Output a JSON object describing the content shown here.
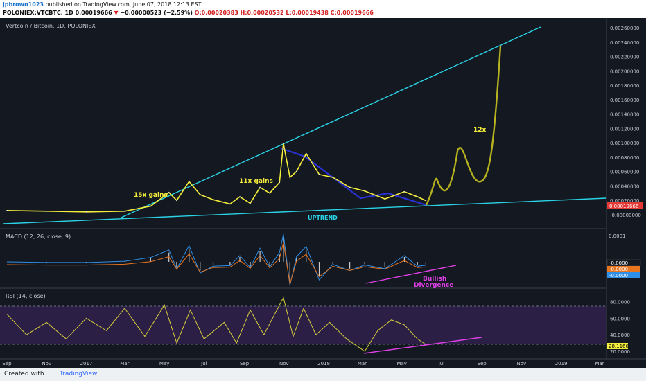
{
  "header": {
    "author": "jpbrown1023",
    "published": " published on TradingView.com, June 07, 2018 12:13 EST",
    "symbol_line_prefix": "POLONIEX:VTCBTC, 1D",
    "price": "0.00019666",
    "change_arrow": "▼",
    "change": "−0.00000523 (−2.59%)",
    "ohlc": "O:0.00020383 H:0.00020532 L:0.00019438 C:0.00019666"
  },
  "chart_data": [
    {
      "type": "line",
      "title": "Vertcoin / Bitcoin, 1D, POLONIEX",
      "ylim": [
        -0.0001,
        0.0027
      ],
      "y_ticks": [
        "0.00260000",
        "0.00240000",
        "0.00220000",
        "0.00200000",
        "0.00180000",
        "0.00160000",
        "0.00140000",
        "0.00120000",
        "0.00100000",
        "0.00080000",
        "0.00060000",
        "0.00040000",
        "0.00020000",
        "-0.00000000"
      ],
      "last_price_label": "0.00019666",
      "series": [
        {
          "values": [
            [
              "2016-09-01",
              6e-05
            ],
            [
              "2016-11-01",
              5e-05
            ],
            [
              "2017-01-01",
              4e-05
            ],
            [
              "2017-03-01",
              5e-05
            ],
            [
              "2017-04-10",
              0.00012
            ],
            [
              "2017-05-08",
              0.00031
            ],
            [
              "2017-05-20",
              0.0002
            ],
            [
              "2017-06-08",
              0.00046
            ],
            [
              "2017-06-25",
              0.00028
            ],
            [
              "2017-07-15",
              0.00021
            ],
            [
              "2017-08-10",
              0.00015
            ],
            [
              "2017-08-25",
              0.00025
            ],
            [
              "2017-09-10",
              0.00016
            ],
            [
              "2017-09-25",
              0.00038
            ],
            [
              "2017-10-10",
              0.0003
            ],
            [
              "2017-10-25",
              0.00045
            ],
            [
              "2017-10-31",
              0.00099
            ],
            [
              "2017-11-10",
              0.00052
            ],
            [
              "2017-11-20",
              0.0006
            ],
            [
              "2017-12-05",
              0.00085
            ],
            [
              "2017-12-25",
              0.00056
            ],
            [
              "2018-01-15",
              0.00052
            ],
            [
              "2018-02-10",
              0.00038
            ],
            [
              "2018-03-05",
              0.00033
            ],
            [
              "2018-04-05",
              0.00022
            ],
            [
              "2018-05-05",
              0.00032
            ],
            [
              "2018-05-25",
              0.00025
            ],
            [
              "2018-06-07",
              0.00019666
            ]
          ]
        }
      ],
      "annotations": [
        "15x gains",
        "11x gains",
        "12x",
        "UPTREND"
      ]
    },
    {
      "type": "line",
      "title": "MACD (12, 26, close, 9)",
      "y_ticks": [
        "0.0001"
      ],
      "value_labels": [
        "-0.0000",
        "-0.0000",
        "-0.0000"
      ],
      "annotations": [
        "Bullish",
        "Divergence"
      ]
    },
    {
      "type": "line",
      "title": "RSI (14, close)",
      "ylim": [
        15,
        88
      ],
      "y_ticks": [
        "80.0000",
        "60.0000",
        "40.0000",
        "20.0000"
      ],
      "last_value_label": "28.1166",
      "series": [
        {
          "values": [
            [
              "2016-09-01",
              65
            ],
            [
              "2016-10-01",
              40
            ],
            [
              "2016-11-01",
              55
            ],
            [
              "2016-12-01",
              35
            ],
            [
              "2017-01-01",
              60
            ],
            [
              "2017-02-01",
              45
            ],
            [
              "2017-03-01",
              72
            ],
            [
              "2017-04-01",
              38
            ],
            [
              "2017-05-01",
              76
            ],
            [
              "2017-05-20",
              30
            ],
            [
              "2017-06-10",
              70
            ],
            [
              "2017-07-01",
              35
            ],
            [
              "2017-08-01",
              55
            ],
            [
              "2017-08-20",
              30
            ],
            [
              "2017-09-10",
              70
            ],
            [
              "2017-10-01",
              40
            ],
            [
              "2017-10-31",
              85
            ],
            [
              "2017-11-15",
              38
            ],
            [
              "2017-12-01",
              72
            ],
            [
              "2017-12-20",
              40
            ],
            [
              "2018-01-10",
              55
            ],
            [
              "2018-02-05",
              35
            ],
            [
              "2018-03-05",
              20
            ],
            [
              "2018-03-25",
              45
            ],
            [
              "2018-04-15",
              58
            ],
            [
              "2018-05-05",
              52
            ],
            [
              "2018-05-25",
              35
            ],
            [
              "2018-06-07",
              28.1166
            ]
          ]
        }
      ]
    }
  ],
  "x_axis": {
    "ticks": [
      {
        "label": "Sep",
        "date": "2016-09-01"
      },
      {
        "label": "Nov",
        "date": "2016-11-01"
      },
      {
        "label": "2017",
        "date": "2017-01-01"
      },
      {
        "label": "Mar",
        "date": "2017-03-01"
      },
      {
        "label": "May",
        "date": "2017-05-01"
      },
      {
        "label": "Jul",
        "date": "2017-07-01"
      },
      {
        "label": "Sep",
        "date": "2017-09-01"
      },
      {
        "label": "Nov",
        "date": "2017-11-01"
      },
      {
        "label": "2018",
        "date": "2018-01-01"
      },
      {
        "label": "Mar",
        "date": "2018-03-01"
      },
      {
        "label": "May",
        "date": "2018-05-01"
      },
      {
        "label": "Jul",
        "date": "2018-07-01"
      },
      {
        "label": "Sep",
        "date": "2018-09-01"
      },
      {
        "label": "Nov",
        "date": "2018-11-01"
      },
      {
        "label": "2019",
        "date": "2019-01-01"
      },
      {
        "label": "Mar",
        "date": "2019-03-01"
      }
    ]
  },
  "colors": {
    "background": "#141821",
    "price": "#f5ee3a",
    "trendline": "#2ad4e6",
    "downtrend": "#2a32d8",
    "projection": "#b6b21f",
    "macd": "#2f8fe8",
    "signal": "#e8741e",
    "rsi": "#d8cf3a",
    "divergence": "#e040e8",
    "price_tag": "#e53935"
  },
  "footer": {
    "made_with": "Created with",
    "brand": "TradingView"
  }
}
